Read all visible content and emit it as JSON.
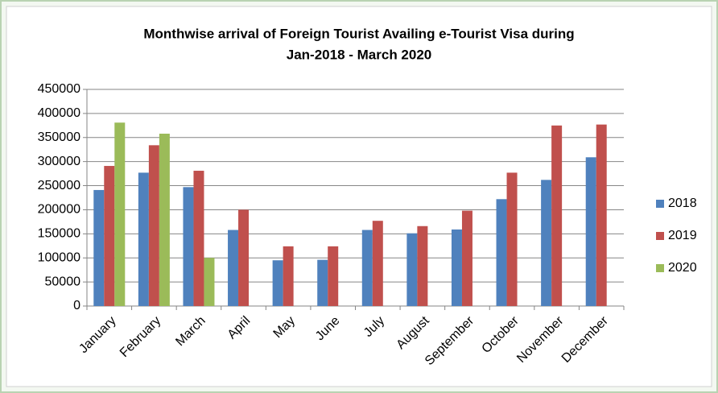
{
  "chart_data": {
    "type": "bar",
    "title": [
      "Monthwise arrival of Foreign Tourist Availing e-Tourist Visa during",
      "Jan-2018 - March 2020"
    ],
    "categories": [
      "January",
      "February",
      "March",
      "April",
      "May",
      "June",
      "July",
      "August",
      "September",
      "October",
      "November",
      "December"
    ],
    "series": [
      {
        "name": "2018",
        "color": "#4f81bd",
        "values": [
          241000,
          277000,
          247000,
          158000,
          95000,
          96000,
          158000,
          151000,
          159000,
          222000,
          262000,
          309000
        ]
      },
      {
        "name": "2019",
        "color": "#c0504d",
        "values": [
          291000,
          334000,
          281000,
          200000,
          124000,
          124000,
          177000,
          166000,
          198000,
          277000,
          375000,
          377000
        ]
      },
      {
        "name": "2020",
        "color": "#9bbb59",
        "values": [
          381000,
          358000,
          100000,
          null,
          null,
          null,
          null,
          null,
          null,
          null,
          null,
          null
        ]
      }
    ],
    "ylim": [
      0,
      450000
    ],
    "yticks": [
      0,
      50000,
      100000,
      150000,
      200000,
      250000,
      300000,
      350000,
      400000,
      450000
    ],
    "grid": true,
    "legend": "right"
  }
}
